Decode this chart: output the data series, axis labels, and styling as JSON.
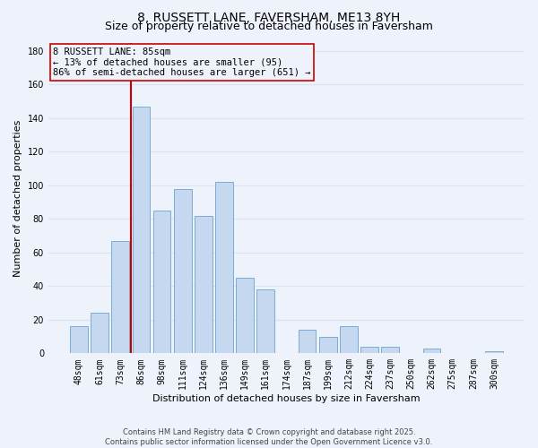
{
  "title": "8, RUSSETT LANE, FAVERSHAM, ME13 8YH",
  "subtitle": "Size of property relative to detached houses in Faversham",
  "xlabel": "Distribution of detached houses by size in Faversham",
  "ylabel": "Number of detached properties",
  "bar_labels": [
    "48sqm",
    "61sqm",
    "73sqm",
    "86sqm",
    "98sqm",
    "111sqm",
    "124sqm",
    "136sqm",
    "149sqm",
    "161sqm",
    "174sqm",
    "187sqm",
    "199sqm",
    "212sqm",
    "224sqm",
    "237sqm",
    "250sqm",
    "262sqm",
    "275sqm",
    "287sqm",
    "300sqm"
  ],
  "bar_values": [
    16,
    24,
    67,
    147,
    85,
    98,
    82,
    102,
    45,
    38,
    0,
    14,
    10,
    16,
    4,
    4,
    0,
    3,
    0,
    0,
    1
  ],
  "bar_color": "#c5d8f0",
  "bar_edge_color": "#7aadd4",
  "vline_index": 3,
  "vline_color": "#cc0000",
  "ylim": [
    0,
    185
  ],
  "yticks": [
    0,
    20,
    40,
    60,
    80,
    100,
    120,
    140,
    160,
    180
  ],
  "annotation_title": "8 RUSSETT LANE: 85sqm",
  "annotation_line1": "← 13% of detached houses are smaller (95)",
  "annotation_line2": "86% of semi-detached houses are larger (651) →",
  "footer1": "Contains HM Land Registry data © Crown copyright and database right 2025.",
  "footer2": "Contains public sector information licensed under the Open Government Licence v3.0.",
  "background_color": "#eef2fb",
  "grid_color": "#d8e4f5",
  "title_fontsize": 10,
  "subtitle_fontsize": 9,
  "axis_label_fontsize": 8,
  "tick_fontsize": 7,
  "footer_fontsize": 6,
  "annotation_fontsize": 7.5
}
